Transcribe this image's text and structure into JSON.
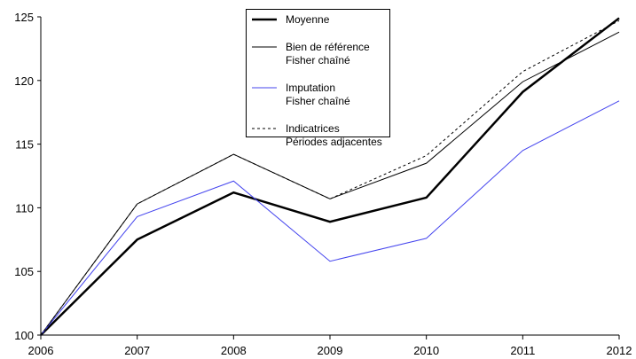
{
  "chart_data": {
    "type": "line",
    "categories": [
      "2006",
      "2007",
      "2008",
      "2009",
      "2010",
      "2011",
      "2012"
    ],
    "series": [
      {
        "name": "Moyenne",
        "color": "#000000",
        "width": 2.5,
        "dash": "solid",
        "values": [
          100,
          107.5,
          111.2,
          108.9,
          110.8,
          119.1,
          124.9
        ]
      },
      {
        "name": "Bien de référence\nFisher chaîné",
        "color": "#000000",
        "width": 1,
        "dash": "solid",
        "values": [
          100,
          110.3,
          114.2,
          110.7,
          113.5,
          119.9,
          123.8
        ]
      },
      {
        "name": "Imputation\nFisher chaîné",
        "color": "#4444ee",
        "width": 1,
        "dash": "solid",
        "values": [
          100,
          109.3,
          112.1,
          105.8,
          107.6,
          114.5,
          118.4
        ]
      },
      {
        "name": "Indicatrices\nPériodes adjacentes",
        "color": "#000000",
        "width": 1,
        "dash": "dashed",
        "values": [
          100,
          110.3,
          114.2,
          110.7,
          114.1,
          120.7,
          124.7
        ]
      }
    ],
    "ylim": [
      100,
      125
    ],
    "yticks": [
      100,
      105,
      110,
      115,
      120,
      125
    ],
    "grid": false
  }
}
